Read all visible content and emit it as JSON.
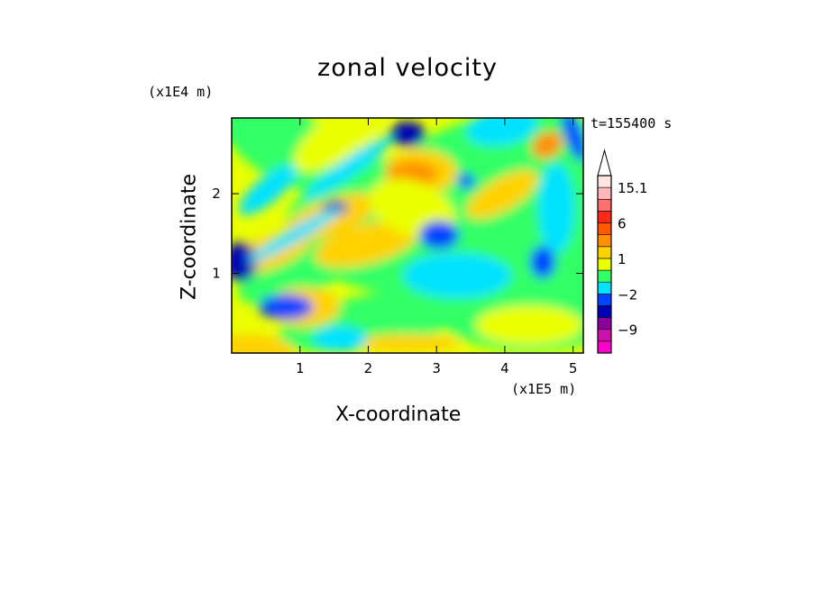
{
  "chart_data": {
    "type": "heatmap",
    "title": "zonal velocity",
    "xlabel": "X-coordinate",
    "ylabel": "Z-coordinate",
    "x_scale_label": "(x1E5 m)",
    "y_scale_label": "(x1E4 m)",
    "time_label": "t=155400 s",
    "xlim": [
      0,
      5.15
    ],
    "ylim": [
      0,
      2.95
    ],
    "x_ticks": [
      1,
      2,
      3,
      4,
      5
    ],
    "y_ticks": [
      1,
      2
    ],
    "colorbar": {
      "labels": [
        "15.1",
        "6",
        "1",
        "-2",
        "-9"
      ],
      "colors": [
        "#ff00cc",
        "#cc11aa",
        "#8a0099",
        "#0000b4",
        "#0044ff",
        "#00e2ff",
        "#33ff66",
        "#eaff00",
        "#ffd200",
        "#ff9000",
        "#ff5a00",
        "#ff2a1a",
        "#ff7070",
        "#ffb7b7",
        "#ffe4e4"
      ],
      "extend_max": true
    }
  }
}
